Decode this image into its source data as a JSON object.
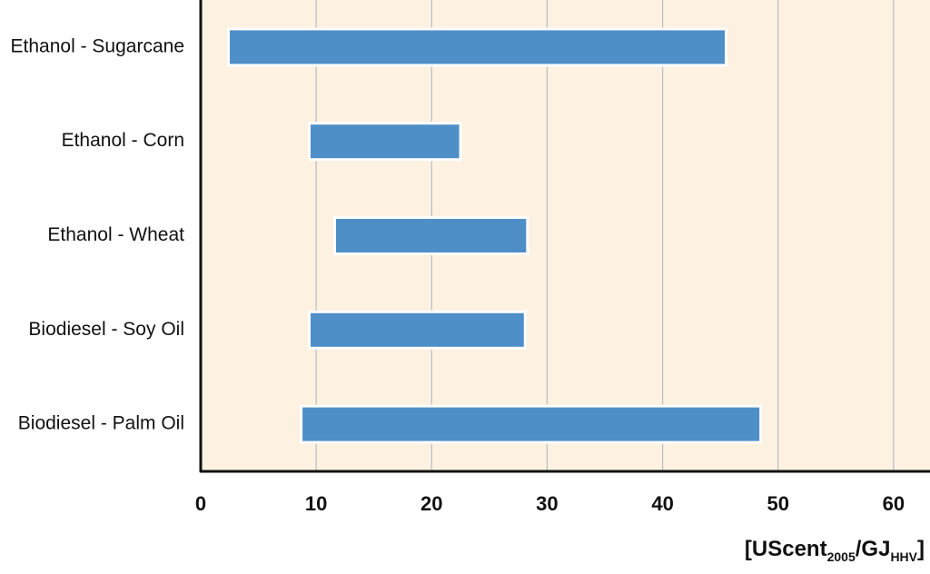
{
  "chart_data": {
    "type": "range_bar",
    "categories": [
      "Ethanol - Sugarcane",
      "Ethanol - Corn",
      "Ethanol - Wheat",
      "Biodiesel - Soy Oil",
      "Biodiesel - Palm Oil"
    ],
    "starts": [
      2.4,
      9.4,
      11.6,
      9.4,
      8.7
    ],
    "ends": [
      45.5,
      22.5,
      28.3,
      28.1,
      48.5
    ],
    "color": "#4f8fc8",
    "background": "#fdf1e1",
    "xlim": [
      0,
      63
    ],
    "xticks": [
      0,
      10,
      20,
      30,
      40,
      50,
      60
    ],
    "grid": true,
    "x_label": [
      "[UScent",
      "2005",
      "/GJ",
      "HHV",
      "]"
    ]
  }
}
